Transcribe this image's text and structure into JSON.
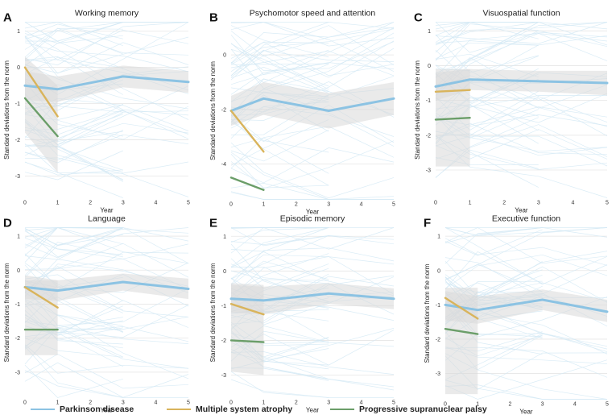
{
  "colors": {
    "pd": "#8cc3e3",
    "pd_thin": "#d3e9f4",
    "msa": "#d9b45c",
    "psp": "#6b9e69",
    "band": "#d9d9d9",
    "grid": "#e6e6e6"
  },
  "legend": [
    {
      "key": "pd",
      "label": "Parkinson disease"
    },
    {
      "key": "msa",
      "label": "Multiple system atrophy"
    },
    {
      "key": "psp",
      "label": "Progressive supranuclear palsy"
    }
  ],
  "chart_data": [
    {
      "type": "line",
      "letter": "A",
      "title": "Working memory",
      "xlabel": "Year",
      "ylabel": "Standard deviations from the norm",
      "xlim": [
        0,
        5
      ],
      "ylim": [
        -3.6,
        1.25
      ],
      "yticks": [
        1,
        0,
        -1,
        -2,
        -3
      ],
      "xticks": [
        0,
        1,
        2,
        3,
        4,
        5
      ],
      "series": [
        {
          "name": "Parkinson disease",
          "key": "pd",
          "x": [
            0,
            1,
            3,
            5
          ],
          "y": [
            -0.5,
            -0.6,
            -0.25,
            -0.4
          ]
        },
        {
          "name": "Multiple system atrophy",
          "key": "msa",
          "x": [
            0,
            1
          ],
          "y": [
            0.0,
            -1.35
          ]
        },
        {
          "name": "Progressive supranuclear palsy",
          "key": "psp",
          "x": [
            0,
            1
          ],
          "y": [
            -0.85,
            -1.9
          ]
        }
      ],
      "bands": [
        {
          "x": [
            0,
            1,
            3,
            5
          ],
          "lower": [
            -0.9,
            -0.95,
            -0.55,
            -0.7
          ],
          "upper": [
            -0.1,
            -0.25,
            0.05,
            -0.1
          ]
        },
        {
          "x": [
            0,
            1
          ],
          "lower": [
            -1.8,
            -2.9
          ],
          "upper": [
            0.3,
            -0.5
          ]
        }
      ]
    },
    {
      "type": "line",
      "letter": "B",
      "title": "Psychomotor speed and attention",
      "xlabel": "Year",
      "ylabel": "Standard deviations from the norm",
      "xlim": [
        0,
        5
      ],
      "ylim": [
        -5.3,
        1.2
      ],
      "yticks": [
        0,
        -2,
        -4
      ],
      "xticks": [
        0,
        1,
        2,
        3,
        4,
        5
      ],
      "series": [
        {
          "name": "Parkinson disease",
          "key": "pd",
          "x": [
            0,
            1,
            3,
            5
          ],
          "y": [
            -2.05,
            -1.6,
            -2.05,
            -1.6
          ]
        },
        {
          "name": "Multiple system atrophy",
          "key": "msa",
          "x": [
            0,
            1
          ],
          "y": [
            -2.05,
            -3.55
          ]
        },
        {
          "name": "Progressive supranuclear palsy",
          "key": "psp",
          "x": [
            0,
            1
          ],
          "y": [
            -4.5,
            -4.95
          ]
        }
      ],
      "bands": [
        {
          "x": [
            0,
            1,
            3,
            5
          ],
          "lower": [
            -2.6,
            -2.2,
            -2.7,
            -2.2
          ],
          "upper": [
            -1.5,
            -1.0,
            -1.4,
            -1.0
          ]
        }
      ]
    },
    {
      "type": "line",
      "letter": "C",
      "title": "Visuospatial function",
      "xlabel": "Year",
      "ylabel": "Standard deviations from the norm",
      "xlim": [
        0,
        5
      ],
      "ylim": [
        -3.8,
        1.25
      ],
      "yticks": [
        1,
        0,
        -1,
        -2,
        -3
      ],
      "xticks": [
        0,
        1,
        2,
        3,
        4,
        5
      ],
      "series": [
        {
          "name": "Parkinson disease",
          "key": "pd",
          "x": [
            0,
            1,
            3,
            5
          ],
          "y": [
            -0.6,
            -0.4,
            -0.45,
            -0.5
          ]
        },
        {
          "name": "Multiple system atrophy",
          "key": "msa",
          "x": [
            0,
            1
          ],
          "y": [
            -0.75,
            -0.7
          ]
        },
        {
          "name": "Progressive supranuclear palsy",
          "key": "psp",
          "x": [
            0,
            1
          ],
          "y": [
            -1.55,
            -1.5
          ]
        }
      ],
      "bands": [
        {
          "x": [
            0,
            1,
            3,
            5
          ],
          "lower": [
            -1.0,
            -0.7,
            -0.75,
            -0.85
          ],
          "upper": [
            -0.2,
            -0.1,
            -0.15,
            -0.15
          ]
        },
        {
          "x": [
            0,
            1
          ],
          "lower": [
            -2.9,
            -2.9
          ],
          "upper": [
            -0.1,
            -0.1
          ]
        }
      ]
    },
    {
      "type": "line",
      "letter": "D",
      "title": "Language",
      "xlabel": "Year",
      "ylabel": "Standard deviations from the norm",
      "xlim": [
        0,
        5
      ],
      "ylim": [
        -3.75,
        1.25
      ],
      "yticks": [
        1,
        0,
        -1,
        -2,
        -3
      ],
      "xticks": [
        0,
        1,
        2,
        3,
        4,
        5
      ],
      "series": [
        {
          "name": "Parkinson disease",
          "key": "pd",
          "x": [
            0,
            1,
            3,
            5
          ],
          "y": [
            -0.5,
            -0.6,
            -0.35,
            -0.55
          ]
        },
        {
          "name": "Multiple system atrophy",
          "key": "msa",
          "x": [
            0,
            1
          ],
          "y": [
            -0.5,
            -1.1
          ]
        },
        {
          "name": "Progressive supranuclear palsy",
          "key": "psp",
          "x": [
            0,
            1
          ],
          "y": [
            -1.75,
            -1.75
          ]
        }
      ],
      "bands": [
        {
          "x": [
            0,
            1,
            3,
            5
          ],
          "lower": [
            -0.85,
            -0.9,
            -0.6,
            -0.85
          ],
          "upper": [
            -0.15,
            -0.3,
            -0.1,
            -0.25
          ]
        },
        {
          "x": [
            0,
            1
          ],
          "lower": [
            -2.5,
            -2.5
          ],
          "upper": [
            -0.3,
            -0.3
          ]
        }
      ]
    },
    {
      "type": "line",
      "letter": "E",
      "title": "Episodic memory",
      "xlabel": "Year",
      "ylabel": "Standard deviations from the norm",
      "xlim": [
        0,
        5
      ],
      "ylim": [
        -3.65,
        1.25
      ],
      "yticks": [
        1,
        0,
        -1,
        -2,
        -3
      ],
      "xticks": [
        0,
        1,
        2,
        3,
        4,
        5
      ],
      "series": [
        {
          "name": "Parkinson disease",
          "key": "pd",
          "x": [
            0,
            1,
            3,
            5
          ],
          "y": [
            -0.8,
            -0.85,
            -0.65,
            -0.8
          ]
        },
        {
          "name": "Multiple system atrophy",
          "key": "msa",
          "x": [
            0,
            1
          ],
          "y": [
            -0.95,
            -1.25
          ]
        },
        {
          "name": "Progressive supranuclear palsy",
          "key": "psp",
          "x": [
            0,
            1
          ],
          "y": [
            -2.0,
            -2.05
          ]
        }
      ],
      "bands": [
        {
          "x": [
            0,
            1,
            3,
            5
          ],
          "lower": [
            -1.2,
            -1.25,
            -0.95,
            -1.1
          ],
          "upper": [
            -0.4,
            -0.45,
            -0.35,
            -0.5
          ]
        },
        {
          "x": [
            0,
            1
          ],
          "lower": [
            -2.9,
            -3.0
          ],
          "upper": [
            -0.35,
            -0.4
          ]
        }
      ]
    },
    {
      "type": "line",
      "letter": "F",
      "title": "Executive function",
      "xlabel": "Year",
      "ylabel": "Standard deviations from the norm",
      "xlim": [
        0,
        5
      ],
      "ylim": [
        -3.75,
        1.25
      ],
      "yticks": [
        1,
        0,
        -1,
        -2,
        -3
      ],
      "xticks": [
        0,
        1,
        2,
        3,
        4,
        5
      ],
      "series": [
        {
          "name": "Parkinson disease",
          "key": "pd",
          "x": [
            0,
            1,
            3,
            5
          ],
          "y": [
            -1.0,
            -1.15,
            -0.85,
            -1.2
          ]
        },
        {
          "name": "Multiple system atrophy",
          "key": "msa",
          "x": [
            0,
            1
          ],
          "y": [
            -0.8,
            -1.4
          ]
        },
        {
          "name": "Progressive supranuclear palsy",
          "key": "psp",
          "x": [
            0,
            1
          ],
          "y": [
            -1.7,
            -1.85
          ]
        }
      ],
      "bands": [
        {
          "x": [
            0,
            1,
            3,
            5
          ],
          "lower": [
            -1.45,
            -1.55,
            -1.15,
            -1.5
          ],
          "upper": [
            -0.6,
            -0.75,
            -0.55,
            -0.85
          ]
        },
        {
          "x": [
            0,
            1
          ],
          "lower": [
            -3.6,
            -3.6
          ],
          "upper": [
            -0.5,
            -0.5
          ]
        }
      ]
    }
  ]
}
